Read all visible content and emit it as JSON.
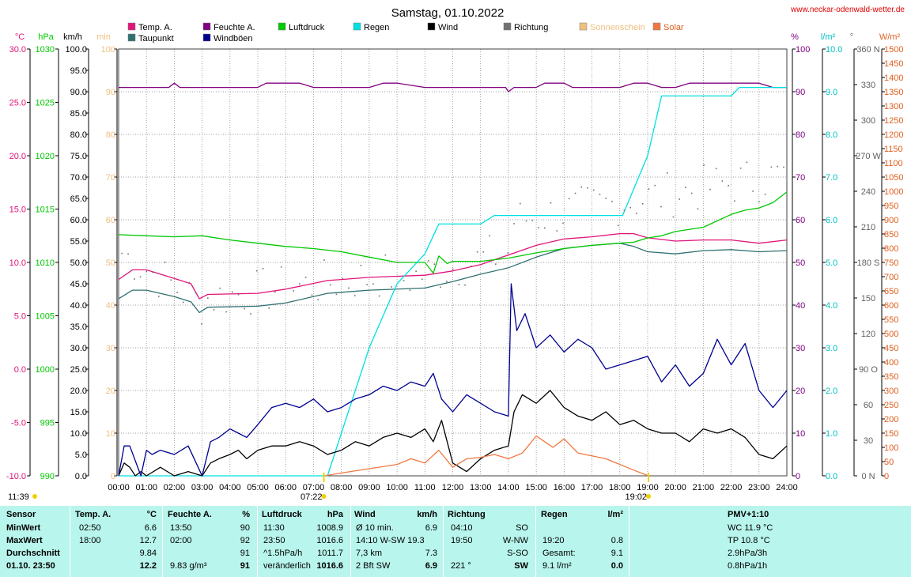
{
  "chart_data": {
    "type": "line",
    "title": "Samstag, 01.10.2022",
    "source": "www.neckar-odenwald-wetter.de",
    "x_ticks": [
      "00:00",
      "01:00",
      "02:00",
      "03:00",
      "04:00",
      "05:00",
      "06:00",
      "07:00",
      "08:00",
      "09:00",
      "10:00",
      "11:00",
      "12:00",
      "13:00",
      "14:00",
      "15:00",
      "16:00",
      "17:00",
      "18:00",
      "19:00",
      "20:00",
      "21:00",
      "22:00",
      "23:00",
      "24:00"
    ],
    "axes": {
      "temp": {
        "unit": "°C",
        "min": -10,
        "max": 30,
        "ticks": [
          "30.0",
          "25.0",
          "20.0",
          "15.0",
          "10.0",
          "5.0",
          "0.0",
          "-5.0",
          "-10.0"
        ],
        "color": "#e0147a"
      },
      "pressure": {
        "unit": "hPa",
        "min": 990,
        "max": 1030,
        "ticks": [
          "1030",
          "1025",
          "1020",
          "1015",
          "1010",
          "1005",
          "1000",
          "995",
          "990"
        ],
        "color": "#00c800"
      },
      "wind": {
        "unit": "km/h",
        "min": 0,
        "max": 100,
        "ticks": [
          "100.0",
          "95.0",
          "90.0",
          "85.0",
          "80.0",
          "75.0",
          "70.0",
          "65.0",
          "60.0",
          "55.0",
          "50.0",
          "45.0",
          "40.0",
          "35.0",
          "30.0",
          "25.0",
          "20.0",
          "15.0",
          "10.0",
          "5.0",
          "0.0"
        ],
        "color": "#000000"
      },
      "sunshine": {
        "unit": "min",
        "min": 0,
        "max": 100,
        "ticks": [
          "100",
          "90",
          "80",
          "70",
          "60",
          "50",
          "40",
          "30",
          "20",
          "10",
          "0"
        ],
        "color": "#f0c080"
      },
      "humidity": {
        "unit": "%",
        "min": 0,
        "max": 100,
        "ticks": [
          "100",
          "90",
          "80",
          "70",
          "60",
          "50",
          "40",
          "30",
          "20",
          "10",
          "0"
        ],
        "color": "#800080"
      },
      "rain": {
        "unit": "l/m²",
        "min": 0,
        "max": 10,
        "ticks": [
          "10.0",
          "9.0",
          "8.0",
          "7.0",
          "6.0",
          "5.0",
          "4.0",
          "3.0",
          "2.0",
          "1.0",
          "0.0"
        ],
        "color": "#00c0c0"
      },
      "direction": {
        "unit": "°",
        "min": 0,
        "max": 360,
        "ticks": [
          "360 N",
          "330",
          "300",
          "270 W",
          "240",
          "210",
          "180 S",
          "150",
          "120",
          "90  O",
          "60",
          "30",
          "0  N"
        ],
        "color": "#606060"
      },
      "solar": {
        "unit": "W/m²",
        "min": 0,
        "max": 1500,
        "ticks": [
          "1500",
          "1450",
          "1400",
          "1350",
          "1300",
          "1250",
          "1200",
          "1150",
          "1100",
          "1050",
          "1000",
          "950",
          "900",
          "850",
          "800",
          "750",
          "700",
          "650",
          "600",
          "550",
          "500",
          "450",
          "400",
          "350",
          "300",
          "250",
          "200",
          "150",
          "100",
          "50",
          "0"
        ],
        "color": "#e06020"
      }
    },
    "legend": [
      {
        "name": "Temp. A.",
        "color": "#e0147a"
      },
      {
        "name": "Feuchte A.",
        "color": "#800080"
      },
      {
        "name": "Luftdruck",
        "color": "#00c800"
      },
      {
        "name": "Regen",
        "color": "#00e0e0"
      },
      {
        "name": "Wind",
        "color": "#000000"
      },
      {
        "name": "Richtung",
        "color": "#707070"
      },
      {
        "name": "Sonnenschein",
        "color": "#f0c080"
      },
      {
        "name": "Solar",
        "color": "#f07840"
      },
      {
        "name": "Taupunkt",
        "color": "#307070"
      },
      {
        "name": "Windböen",
        "color": "#000090"
      }
    ],
    "series": [
      {
        "name": "Temp. A.",
        "axis": "temp",
        "color": "#e0147a",
        "x": [
          0,
          0.5,
          1,
          2,
          2.6,
          2.9,
          3.2,
          5,
          6,
          7.5,
          8,
          9,
          11,
          12,
          13,
          14,
          15,
          16,
          17,
          18,
          18.5,
          19,
          20,
          21,
          22,
          23,
          24
        ],
        "y": [
          8.4,
          9.3,
          9.3,
          8.5,
          8.0,
          6.6,
          7.0,
          7.1,
          7.5,
          8.3,
          8.4,
          8.6,
          8.8,
          9.2,
          9.8,
          10.7,
          11.6,
          12.2,
          12.4,
          12.7,
          12.7,
          12.3,
          12.0,
          12.1,
          12.1,
          11.8,
          12.1
        ]
      },
      {
        "name": "Taupunkt",
        "axis": "temp",
        "color": "#307070",
        "x": [
          0,
          0.5,
          1,
          2,
          2.6,
          2.9,
          3.2,
          5,
          6,
          7.5,
          8,
          9,
          11,
          12,
          13,
          14,
          15,
          16,
          17,
          18,
          18.5,
          19,
          20,
          21,
          22,
          23,
          24
        ],
        "y": [
          6.6,
          7.4,
          7.4,
          6.8,
          6.3,
          5.3,
          5.8,
          5.9,
          6.2,
          7.1,
          7.2,
          7.4,
          7.6,
          8.2,
          8.9,
          9.5,
          10.5,
          11.3,
          11.6,
          11.8,
          11.5,
          11.0,
          10.8,
          11.1,
          11.2,
          11.0,
          11.1
        ]
      },
      {
        "name": "Feuchte A.",
        "axis": "humidity",
        "color": "#800080",
        "x": [
          0,
          1.8,
          2,
          2.2,
          3,
          5,
          5.3,
          6.5,
          7,
          9,
          9.5,
          10,
          11,
          12,
          13,
          13.9,
          14,
          14.2,
          15,
          15.3,
          16,
          16.3,
          18,
          18.5,
          19,
          19.5,
          20,
          20.5,
          21,
          22,
          23,
          23.5,
          24
        ],
        "y": [
          91,
          91,
          92,
          91,
          91,
          91,
          92,
          92,
          91,
          91,
          92,
          92,
          91,
          91,
          91,
          91,
          90,
          91,
          91,
          92,
          92,
          91,
          91,
          92,
          92,
          91,
          91,
          92,
          92,
          92,
          92,
          91,
          91
        ]
      },
      {
        "name": "Luftdruck",
        "axis": "pressure",
        "color": "#00c800",
        "x": [
          0,
          1,
          2,
          3,
          4,
          5,
          6,
          7,
          8,
          9,
          10,
          11,
          11.3,
          11.5,
          11.8,
          12,
          13,
          14,
          15,
          16,
          17,
          17.5,
          18,
          18.5,
          19,
          19.5,
          20,
          21,
          22,
          22.5,
          23,
          23.5,
          24
        ],
        "y": [
          1012.6,
          1012.5,
          1012.4,
          1012.5,
          1012.1,
          1011.8,
          1011.5,
          1011.3,
          1011.0,
          1010.5,
          1010.0,
          1010.0,
          1009.0,
          1010.6,
          1009.9,
          1010.1,
          1010.1,
          1010.4,
          1010.9,
          1011.3,
          1011.6,
          1011.7,
          1011.8,
          1011.9,
          1012.3,
          1012.5,
          1012.9,
          1013.3,
          1014.5,
          1014.9,
          1015.1,
          1015.6,
          1016.6
        ]
      },
      {
        "name": "Regen",
        "axis": "rain",
        "color": "#00e0e0",
        "x": [
          0,
          7.5,
          8,
          9,
          10,
          11,
          11.5,
          12,
          13,
          13.5,
          14,
          15,
          16,
          17,
          18,
          18.1,
          19,
          19.5,
          20,
          21,
          22,
          22.3,
          23,
          24
        ],
        "y": [
          0,
          0,
          1.0,
          3.0,
          4.5,
          5.2,
          5.9,
          5.9,
          5.9,
          6.1,
          6.1,
          6.1,
          6.1,
          6.1,
          6.1,
          6.1,
          7.5,
          8.9,
          8.9,
          8.9,
          8.9,
          9.1,
          9.1,
          9.1
        ]
      },
      {
        "name": "Wind",
        "axis": "wind",
        "color": "#000000",
        "x": [
          0,
          0.2,
          0.4,
          0.6,
          0.8,
          1,
          1.5,
          2,
          2.5,
          3,
          3.3,
          3.6,
          4,
          4.3,
          4.6,
          5,
          5.5,
          6,
          6.5,
          7,
          7.5,
          8,
          8.5,
          9,
          9.5,
          10,
          10.5,
          11,
          11.3,
          11.6,
          12,
          12.5,
          13,
          13.5,
          14,
          14.2,
          14.5,
          15,
          15.5,
          16,
          16.5,
          17,
          17.5,
          18,
          18.5,
          19,
          19.5,
          20,
          20.5,
          21,
          21.5,
          22,
          22.5,
          23,
          23.5,
          24
        ],
        "y": [
          0,
          3,
          2,
          0,
          1,
          0,
          2,
          0,
          1,
          0,
          3,
          4,
          5,
          6,
          4,
          6,
          7,
          7,
          8,
          7,
          5,
          6,
          8,
          7,
          9,
          10,
          9,
          11,
          8,
          13,
          3,
          1,
          4,
          6,
          7,
          15,
          19,
          17,
          20,
          16,
          14,
          13,
          15,
          12,
          13,
          11,
          10,
          10,
          8,
          11,
          10,
          11,
          9,
          5,
          4,
          7
        ]
      },
      {
        "name": "Windböen",
        "axis": "wind",
        "color": "#000090",
        "x": [
          0,
          0.2,
          0.4,
          0.8,
          1,
          1.2,
          1.5,
          2,
          2.5,
          3,
          3.3,
          3.6,
          4,
          4.3,
          4.6,
          5,
          5.5,
          6,
          6.5,
          7,
          7.5,
          8,
          8.5,
          9,
          9.5,
          10,
          10.5,
          11,
          11.3,
          11.6,
          12,
          12.5,
          13,
          13.5,
          14,
          14.1,
          14.3,
          14.6,
          15,
          15.5,
          16,
          16.5,
          17,
          17.5,
          18,
          18.5,
          19,
          19.5,
          20,
          20.5,
          21,
          21.5,
          22,
          22.5,
          23,
          23.5,
          24
        ],
        "y": [
          0,
          7,
          7,
          0,
          6,
          5,
          6,
          5,
          7,
          0,
          8,
          9,
          11,
          10,
          9,
          12,
          16,
          17,
          16,
          18,
          15,
          16,
          18,
          19,
          21,
          20,
          22,
          21,
          24,
          18,
          15,
          19,
          17,
          15,
          14,
          45,
          34,
          38,
          30,
          33,
          29,
          32,
          30,
          25,
          26,
          27,
          28,
          22,
          26,
          21,
          24,
          32,
          26,
          31,
          20,
          16,
          20
        ]
      },
      {
        "name": "Solar",
        "axis": "solar",
        "color": "#f07840",
        "x": [
          7.4,
          8,
          9,
          10,
          10.5,
          11,
          11.5,
          12,
          12.5,
          13,
          13.5,
          14,
          14.5,
          15,
          15.3,
          15.6,
          16,
          16.5,
          17,
          17.5,
          18,
          18.5,
          19.03
        ],
        "y": [
          0,
          10,
          25,
          40,
          60,
          45,
          90,
          30,
          60,
          65,
          75,
          60,
          80,
          140,
          120,
          100,
          130,
          80,
          70,
          60,
          40,
          20,
          0
        ]
      }
    ],
    "annotations": [
      {
        "label": "07:22",
        "x": 7.37,
        "color": "#f0d000"
      },
      {
        "label": "19:02",
        "x": 19.03,
        "color": "#f0d000"
      },
      {
        "label": "11:39",
        "x": -4
      }
    ]
  },
  "table": {
    "headers": [
      "Sensor",
      "Temp. A.",
      "°C",
      "Feuchte A.",
      "%",
      "Luftdruck",
      "hPa",
      "Wind",
      "km/h",
      "Richtung",
      "",
      "Regen",
      "l/m²",
      "PMV+1:10"
    ],
    "rows": [
      {
        "label": "MinWert",
        "t_time": "02:50",
        "t_val": "6.6",
        "h_time": "13:50",
        "h_val": "90",
        "p_time": "11:30",
        "p_val": "1008.9",
        "w_desc": "Ø 10 min.",
        "w_val": "6.9",
        "d_time": "04:10",
        "d_val": "SO",
        "r_time": "",
        "r_val": "",
        "pmv": "WC 11.9 °C"
      },
      {
        "label": "MaxWert",
        "t_time": "18:00",
        "t_val": "12.7",
        "h_time": "02:00",
        "h_val": "92",
        "p_time": "23:50",
        "p_val": "1016.6",
        "w_desc": "14:10      W-SW 19.3",
        "w_val": "",
        "d_time": "19:50",
        "d_val": "W-NW",
        "r_time": "19:20",
        "r_val": "0.8",
        "pmv": "TP 10.8 °C"
      },
      {
        "label": "Durchschnitt",
        "t_time": "",
        "t_val": "9.84",
        "h_time": "",
        "h_val": "91",
        "p_time": "^1.5hPa/h",
        "p_val": "1011.7",
        "w_desc": "7,3 km",
        "w_val": "7.3",
        "d_time": "",
        "d_val": "S-SO",
        "r_time": "Gesamt:",
        "r_val": "9.1",
        "pmv": "2.9hPa/3h"
      },
      {
        "label": "01.10. 23:50",
        "t_time": "",
        "t_val": "12.2",
        "h_time": "9.83 g/m³",
        "h_val": "91",
        "p_time": "veränderlich",
        "p_val": "1016.6",
        "w_desc": "2 Bft SW",
        "w_val": "6.9",
        "d_time": "221 °",
        "d_val": "SW",
        "r_time": "9.1 l/m²",
        "r_val": "0.0",
        "pmv": "0.8hPa/1h"
      }
    ]
  }
}
